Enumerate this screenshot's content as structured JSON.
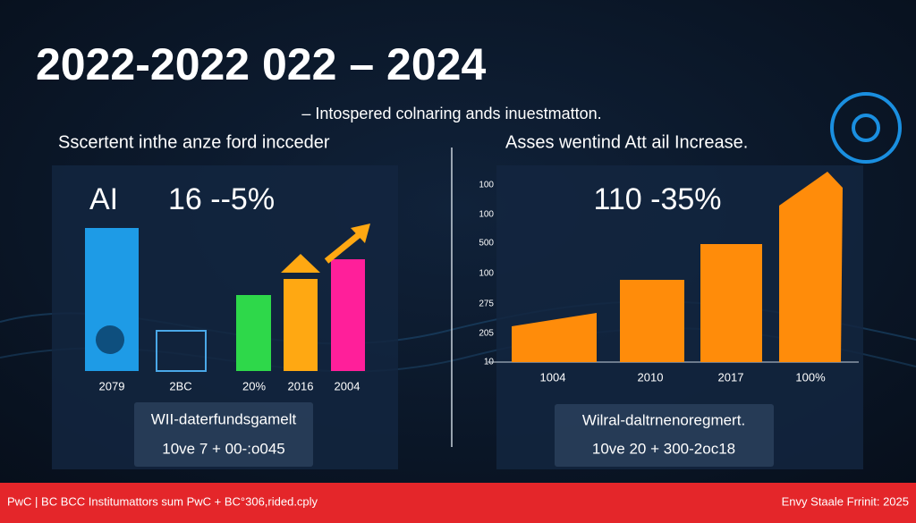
{
  "header": {
    "title": "2022-2022 022 – 2024",
    "subtitle": "– Intospered colnaring ands inuestmatton."
  },
  "left_panel": {
    "heading": "Sscertent inthe anze ford incceder",
    "label": "AI",
    "metric": "16 --5%",
    "categories": [
      "2079",
      "2BC",
      "20%",
      "2016",
      "2004"
    ],
    "box_lines": [
      "WII-daterfundsgamelt",
      "10ve 7 + 00-:o045"
    ]
  },
  "right_panel": {
    "heading": "Asses wentind Att ail Increase.",
    "metric": "110 -35%",
    "axis_labels": [
      "100",
      "100",
      "500",
      "100",
      "275",
      "205",
      "10"
    ],
    "categories": [
      "1004",
      "2010",
      "2017",
      "100%"
    ],
    "box_lines": [
      "Wilral-daltrnenoregmert.",
      "10ve 20 + 300-2oc18"
    ]
  },
  "footer": {
    "left": "PwC | BC BCC Institumattors sum PwC + BC°306,rided.cply",
    "right": "Envy Staale Frrinit: 2025"
  }
}
